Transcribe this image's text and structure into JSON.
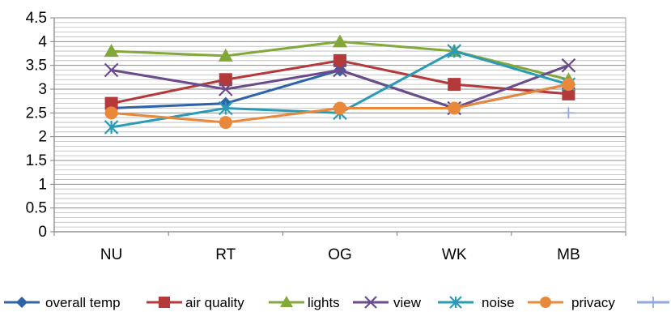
{
  "chart_data": {
    "type": "line",
    "title": "",
    "xlabel": "",
    "ylabel": "",
    "categories": [
      "NU",
      "RT",
      "OG",
      "WK",
      "MB"
    ],
    "ylim": [
      0,
      4.5
    ],
    "yticks": [
      "0",
      "0.5",
      "1",
      "1.5",
      "2",
      "2.5",
      "3",
      "3.5",
      "4",
      "4.5"
    ],
    "grid": "horizontal",
    "legend_position": "bottom",
    "series": [
      {
        "name": "overall temp",
        "color": "#2E63A8",
        "marker": "diamond",
        "values": [
          2.6,
          2.7,
          3.4,
          2.6,
          3.1
        ]
      },
      {
        "name": "air quality",
        "color": "#B3393A",
        "marker": "square",
        "values": [
          2.7,
          3.2,
          3.6,
          3.1,
          2.9
        ]
      },
      {
        "name": "lights",
        "color": "#82A83A",
        "marker": "triangle",
        "values": [
          3.8,
          3.7,
          4.0,
          3.8,
          3.2
        ]
      },
      {
        "name": "view",
        "color": "#6A4B8C",
        "marker": "x",
        "values": [
          3.4,
          3.0,
          3.4,
          2.6,
          3.5
        ]
      },
      {
        "name": "noise",
        "color": "#2A9BB5",
        "marker": "star",
        "values": [
          2.2,
          2.6,
          2.5,
          3.8,
          3.1
        ]
      },
      {
        "name": "privacy",
        "color": "#E8883A",
        "marker": "circle",
        "values": [
          2.5,
          2.3,
          2.6,
          2.6,
          3.1
        ]
      },
      {
        "name": "",
        "color": "#8FAADC",
        "marker": "plus",
        "values": [
          null,
          null,
          null,
          null,
          2.5
        ]
      }
    ]
  }
}
